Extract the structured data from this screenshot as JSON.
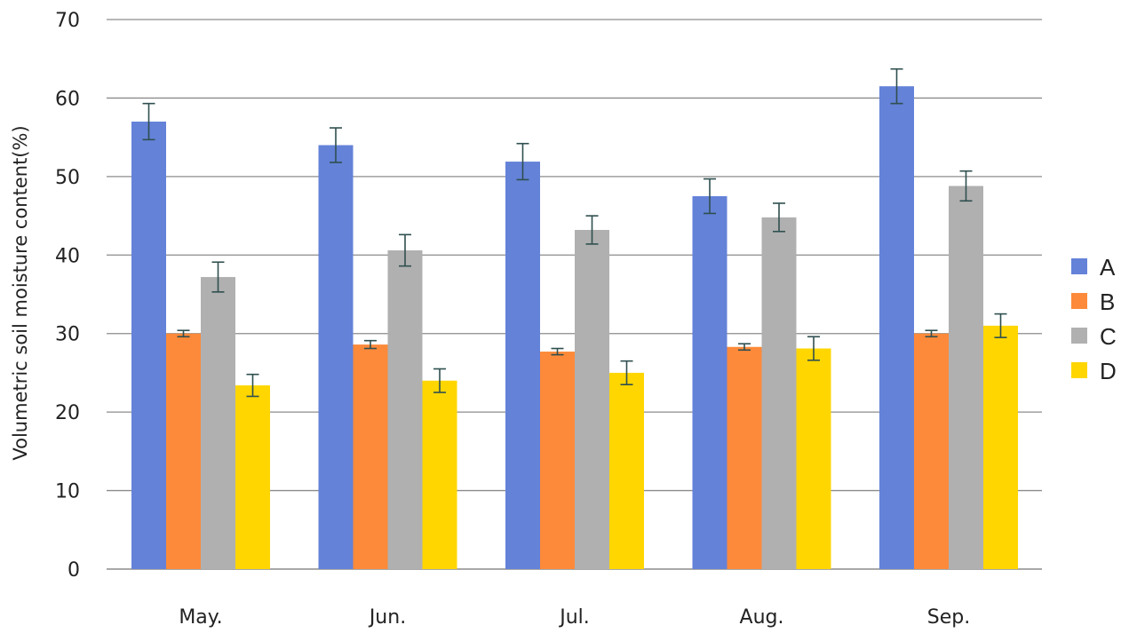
{
  "chart_data": {
    "type": "bar",
    "title": "",
    "xlabel": "",
    "ylabel": "Volumetric soil moisture content(%)",
    "ylim": [
      0,
      70
    ],
    "yticks": [
      "0",
      "10",
      "20",
      "30",
      "40",
      "50",
      "60",
      "70"
    ],
    "grid": true,
    "legend_position": "right",
    "categories": [
      "May.",
      "Jun.",
      "Jul.",
      "Aug.",
      "Sep."
    ],
    "series": [
      {
        "name": "A",
        "color": "#6482d8",
        "values": [
          57.0,
          54.0,
          51.9,
          47.5,
          61.5
        ],
        "errors": [
          2.3,
          2.2,
          2.3,
          2.2,
          2.2
        ]
      },
      {
        "name": "B",
        "color": "#fd8a3a",
        "values": [
          30.0,
          28.6,
          27.7,
          28.3,
          30.0
        ],
        "errors": [
          0.4,
          0.5,
          0.4,
          0.4,
          0.4
        ]
      },
      {
        "name": "C",
        "color": "#b0b0b0",
        "values": [
          37.2,
          40.6,
          43.2,
          44.8,
          48.8
        ],
        "errors": [
          1.9,
          2.0,
          1.8,
          1.8,
          1.9
        ]
      },
      {
        "name": "D",
        "color": "#ffd600",
        "values": [
          23.4,
          24.0,
          25.0,
          28.1,
          31.0
        ],
        "errors": [
          1.4,
          1.5,
          1.5,
          1.5,
          1.5
        ]
      }
    ]
  }
}
